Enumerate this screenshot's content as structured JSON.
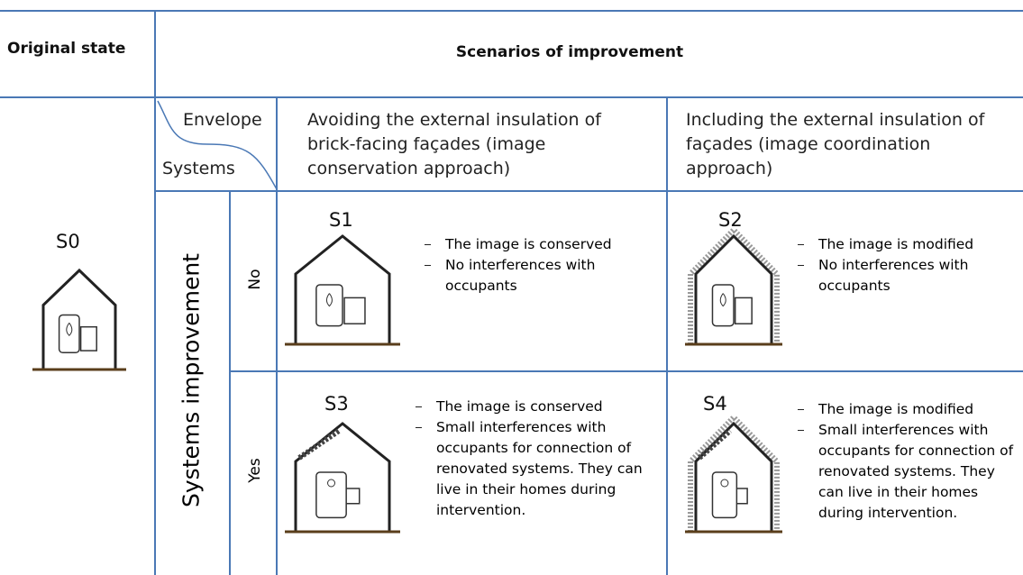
{
  "header": {
    "original_state": "Original state",
    "scenarios": "Scenarios of improvement"
  },
  "corner": {
    "envelope": "Envelope",
    "systems": "Systems"
  },
  "envelope_options": [
    "Avoiding the external insulation of brick-facing façades (image conservation approach)",
    "Including the external insulation of façades (image coordination approach)"
  ],
  "original": {
    "label": "S0"
  },
  "systems_axis": "Systems improvement",
  "rows": [
    {
      "label": "No",
      "cells": [
        {
          "label": "S1",
          "bullets": [
            "The image is conserved",
            "No interferences with occupants"
          ]
        },
        {
          "label": "S2",
          "bullets": [
            "The image is modified",
            "No interferences with occupants"
          ]
        }
      ]
    },
    {
      "label": "Yes",
      "cells": [
        {
          "label": "S3",
          "bullets": [
            "The image is conserved",
            "Small interferences  with occupants for connection of renovated systems. They can live in their homes during intervention."
          ]
        },
        {
          "label": "S4",
          "bullets": [
            "The image is modified",
            "Small interferences with occupants for connection of renovated systems. They can live in their homes during intervention."
          ]
        }
      ]
    }
  ]
}
